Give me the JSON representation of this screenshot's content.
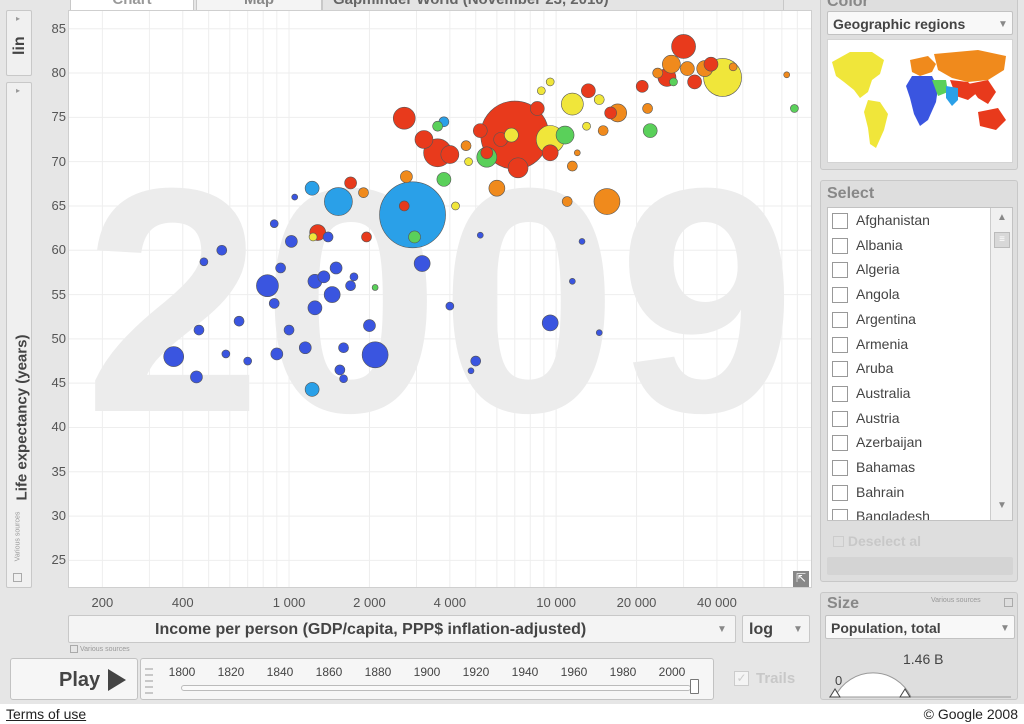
{
  "tabs": {
    "chart": "Chart",
    "map": "Map",
    "title": "Gapminder World (November 23, 2010)"
  },
  "y_axis": {
    "scale": "lin",
    "title": "Life expectancy (years)",
    "source": "Various sources",
    "ticks": [
      "85",
      "80",
      "75",
      "70",
      "65",
      "60",
      "55",
      "50",
      "45",
      "40",
      "35",
      "30",
      "25"
    ]
  },
  "x_axis": {
    "title": "Income per person (GDP/capita, PPP$ inflation-adjusted)",
    "scale": "log",
    "source": "Various sources",
    "ticks": [
      "200",
      "400",
      "1 000",
      "2 000",
      "4 000",
      "10 000",
      "20 000",
      "40 000"
    ]
  },
  "year_watermark": "2009",
  "timeline": {
    "play_label": "Play",
    "years": [
      "1800",
      "1820",
      "1840",
      "1860",
      "1880",
      "1900",
      "1920",
      "1940",
      "1960",
      "1980",
      "2000"
    ],
    "trails_label": "Trails",
    "position": 0.995
  },
  "color_panel": {
    "title": "Color",
    "selected": "Geographic regions"
  },
  "select_panel": {
    "title": "Select",
    "countries": [
      "Afghanistan",
      "Albania",
      "Algeria",
      "Angola",
      "Argentina",
      "Armenia",
      "Aruba",
      "Australia",
      "Austria",
      "Azerbaijan",
      "Bahamas",
      "Bahrain",
      "Bangladesh"
    ],
    "deselect_label": "Deselect al"
  },
  "size_panel": {
    "title": "Size",
    "source": "Various sources",
    "selected": "Population, total",
    "min_label": "0",
    "max_label": "1.46 B"
  },
  "footer": {
    "terms": "Terms of use",
    "copyright": "© Google 2008"
  },
  "colors": {
    "africa": "#3a55e0",
    "south_asia": "#2aa0e8",
    "americas": "#f0e63a",
    "europe": "#f08a1c",
    "middle_east": "#e83a1c",
    "green": "#5ad05a"
  },
  "chart_data": {
    "type": "scatter",
    "xlabel": "Income per person (GDP/capita, PPP$ inflation-adjusted)",
    "ylabel": "Life expectancy (years)",
    "xscale": "log",
    "xlim": [
      150,
      90000
    ],
    "ylim": [
      22,
      87
    ],
    "points": [
      {
        "x": 370,
        "y": 48,
        "s": 10,
        "c": "africa"
      },
      {
        "x": 450,
        "y": 45.7,
        "s": 6,
        "c": "africa"
      },
      {
        "x": 460,
        "y": 51,
        "s": 5,
        "c": "africa"
      },
      {
        "x": 480,
        "y": 58.7,
        "s": 4,
        "c": "africa"
      },
      {
        "x": 560,
        "y": 60,
        "s": 5,
        "c": "africa"
      },
      {
        "x": 580,
        "y": 48.3,
        "s": 4,
        "c": "africa"
      },
      {
        "x": 650,
        "y": 52,
        "s": 5,
        "c": "africa"
      },
      {
        "x": 700,
        "y": 47.5,
        "s": 4,
        "c": "africa"
      },
      {
        "x": 830,
        "y": 56,
        "s": 11,
        "c": "africa"
      },
      {
        "x": 880,
        "y": 54,
        "s": 5,
        "c": "africa"
      },
      {
        "x": 880,
        "y": 63,
        "s": 4,
        "c": "africa"
      },
      {
        "x": 900,
        "y": 48.3,
        "s": 6,
        "c": "africa"
      },
      {
        "x": 930,
        "y": 58,
        "s": 5,
        "c": "africa"
      },
      {
        "x": 1000,
        "y": 51,
        "s": 5,
        "c": "africa"
      },
      {
        "x": 1020,
        "y": 61,
        "s": 6,
        "c": "africa"
      },
      {
        "x": 1050,
        "y": 66,
        "s": 3,
        "c": "africa"
      },
      {
        "x": 1150,
        "y": 49,
        "s": 6,
        "c": "africa"
      },
      {
        "x": 1250,
        "y": 56.5,
        "s": 7,
        "c": "africa"
      },
      {
        "x": 1250,
        "y": 53.5,
        "s": 7,
        "c": "africa"
      },
      {
        "x": 1350,
        "y": 57,
        "s": 6,
        "c": "africa"
      },
      {
        "x": 1400,
        "y": 61.5,
        "s": 5,
        "c": "africa"
      },
      {
        "x": 1450,
        "y": 55,
        "s": 8,
        "c": "africa"
      },
      {
        "x": 1500,
        "y": 58,
        "s": 6,
        "c": "africa"
      },
      {
        "x": 1550,
        "y": 46.5,
        "s": 5,
        "c": "africa"
      },
      {
        "x": 1600,
        "y": 45.5,
        "s": 4,
        "c": "africa"
      },
      {
        "x": 1600,
        "y": 49,
        "s": 5,
        "c": "africa"
      },
      {
        "x": 1700,
        "y": 56,
        "s": 5,
        "c": "africa"
      },
      {
        "x": 1750,
        "y": 57,
        "s": 4,
        "c": "africa"
      },
      {
        "x": 2000,
        "y": 51.5,
        "s": 6,
        "c": "africa"
      },
      {
        "x": 2100,
        "y": 48.2,
        "s": 13,
        "c": "africa"
      },
      {
        "x": 3150,
        "y": 58.5,
        "s": 8,
        "c": "africa"
      },
      {
        "x": 4000,
        "y": 53.7,
        "s": 4,
        "c": "africa"
      },
      {
        "x": 4800,
        "y": 46.4,
        "s": 3,
        "c": "africa"
      },
      {
        "x": 5000,
        "y": 47.5,
        "s": 5,
        "c": "africa"
      },
      {
        "x": 5200,
        "y": 61.7,
        "s": 3,
        "c": "africa"
      },
      {
        "x": 9500,
        "y": 51.8,
        "s": 8,
        "c": "africa"
      },
      {
        "x": 11500,
        "y": 56.5,
        "s": 3,
        "c": "africa"
      },
      {
        "x": 12500,
        "y": 61,
        "s": 3,
        "c": "africa"
      },
      {
        "x": 14500,
        "y": 50.7,
        "s": 3,
        "c": "africa"
      },
      {
        "x": 1220,
        "y": 44.3,
        "s": 7,
        "c": "south_asia"
      },
      {
        "x": 1220,
        "y": 67,
        "s": 7,
        "c": "south_asia"
      },
      {
        "x": 1530,
        "y": 65.5,
        "s": 14,
        "c": "south_asia"
      },
      {
        "x": 2900,
        "y": 64,
        "s": 33,
        "c": "south_asia"
      },
      {
        "x": 3800,
        "y": 74.5,
        "s": 5,
        "c": "south_asia"
      },
      {
        "x": 1280,
        "y": 62,
        "s": 8,
        "c": "middle_east"
      },
      {
        "x": 1700,
        "y": 67.6,
        "s": 6,
        "c": "middle_east"
      },
      {
        "x": 1950,
        "y": 61.5,
        "s": 5,
        "c": "middle_east"
      },
      {
        "x": 2700,
        "y": 65,
        "s": 5,
        "c": "middle_east"
      },
      {
        "x": 2700,
        "y": 74.9,
        "s": 11,
        "c": "middle_east"
      },
      {
        "x": 3200,
        "y": 72.5,
        "s": 9,
        "c": "middle_east"
      },
      {
        "x": 3600,
        "y": 71,
        "s": 14,
        "c": "middle_east"
      },
      {
        "x": 4000,
        "y": 70.8,
        "s": 9,
        "c": "middle_east"
      },
      {
        "x": 5200,
        "y": 73.5,
        "s": 7,
        "c": "middle_east"
      },
      {
        "x": 5500,
        "y": 71,
        "s": 6,
        "c": "middle_east"
      },
      {
        "x": 6200,
        "y": 72.5,
        "s": 7,
        "c": "middle_east"
      },
      {
        "x": 7000,
        "y": 73,
        "s": 34,
        "c": "middle_east"
      },
      {
        "x": 7200,
        "y": 69.3,
        "s": 10,
        "c": "middle_east"
      },
      {
        "x": 8500,
        "y": 76,
        "s": 7,
        "c": "middle_east"
      },
      {
        "x": 9500,
        "y": 71,
        "s": 8,
        "c": "middle_east"
      },
      {
        "x": 13200,
        "y": 78,
        "s": 7,
        "c": "middle_east"
      },
      {
        "x": 16000,
        "y": 75.5,
        "s": 6,
        "c": "middle_east"
      },
      {
        "x": 21000,
        "y": 78.5,
        "s": 6,
        "c": "middle_east"
      },
      {
        "x": 26000,
        "y": 79.5,
        "s": 9,
        "c": "middle_east"
      },
      {
        "x": 30000,
        "y": 83,
        "s": 12,
        "c": "middle_east"
      },
      {
        "x": 33000,
        "y": 79,
        "s": 7,
        "c": "middle_east"
      },
      {
        "x": 38000,
        "y": 81,
        "s": 7,
        "c": "middle_east"
      },
      {
        "x": 1230,
        "y": 61.5,
        "s": 4,
        "c": "americas"
      },
      {
        "x": 4200,
        "y": 65,
        "s": 4,
        "c": "americas"
      },
      {
        "x": 4700,
        "y": 70,
        "s": 4,
        "c": "americas"
      },
      {
        "x": 6800,
        "y": 73,
        "s": 7,
        "c": "americas"
      },
      {
        "x": 9500,
        "y": 72.5,
        "s": 14,
        "c": "americas"
      },
      {
        "x": 9500,
        "y": 79,
        "s": 4,
        "c": "americas"
      },
      {
        "x": 11500,
        "y": 76.5,
        "s": 11,
        "c": "americas"
      },
      {
        "x": 13000,
        "y": 74,
        "s": 4,
        "c": "americas"
      },
      {
        "x": 14500,
        "y": 77,
        "s": 5,
        "c": "americas"
      },
      {
        "x": 42000,
        "y": 79.5,
        "s": 19,
        "c": "americas"
      },
      {
        "x": 8800,
        "y": 78,
        "s": 4,
        "c": "americas"
      },
      {
        "x": 1900,
        "y": 66.5,
        "s": 5,
        "c": "europe"
      },
      {
        "x": 2750,
        "y": 68.3,
        "s": 6,
        "c": "europe"
      },
      {
        "x": 4600,
        "y": 71.8,
        "s": 5,
        "c": "europe"
      },
      {
        "x": 6000,
        "y": 67,
        "s": 8,
        "c": "europe"
      },
      {
        "x": 11000,
        "y": 65.5,
        "s": 5,
        "c": "europe"
      },
      {
        "x": 15500,
        "y": 65.5,
        "s": 13,
        "c": "europe"
      },
      {
        "x": 11500,
        "y": 69.5,
        "s": 5,
        "c": "europe"
      },
      {
        "x": 15000,
        "y": 73.5,
        "s": 5,
        "c": "europe"
      },
      {
        "x": 17000,
        "y": 75.5,
        "s": 9,
        "c": "europe"
      },
      {
        "x": 22000,
        "y": 76,
        "s": 5,
        "c": "europe"
      },
      {
        "x": 24000,
        "y": 80,
        "s": 5,
        "c": "europe"
      },
      {
        "x": 27000,
        "y": 81,
        "s": 9,
        "c": "europe"
      },
      {
        "x": 31000,
        "y": 80.5,
        "s": 7,
        "c": "europe"
      },
      {
        "x": 36000,
        "y": 80.5,
        "s": 8,
        "c": "europe"
      },
      {
        "x": 46000,
        "y": 80.7,
        "s": 4,
        "c": "europe"
      },
      {
        "x": 73000,
        "y": 79.8,
        "s": 3,
        "c": "europe"
      },
      {
        "x": 12000,
        "y": 71,
        "s": 3,
        "c": "europe"
      },
      {
        "x": 2950,
        "y": 61.5,
        "s": 6,
        "c": "green"
      },
      {
        "x": 2100,
        "y": 55.8,
        "s": 3,
        "c": "green"
      },
      {
        "x": 3600,
        "y": 74,
        "s": 5,
        "c": "green"
      },
      {
        "x": 3800,
        "y": 68,
        "s": 7,
        "c": "green"
      },
      {
        "x": 5500,
        "y": 70.5,
        "s": 10,
        "c": "green"
      },
      {
        "x": 10800,
        "y": 73,
        "s": 9,
        "c": "green"
      },
      {
        "x": 22500,
        "y": 73.5,
        "s": 7,
        "c": "green"
      },
      {
        "x": 78000,
        "y": 76,
        "s": 4,
        "c": "green"
      },
      {
        "x": 27500,
        "y": 79,
        "s": 4,
        "c": "green"
      }
    ]
  }
}
